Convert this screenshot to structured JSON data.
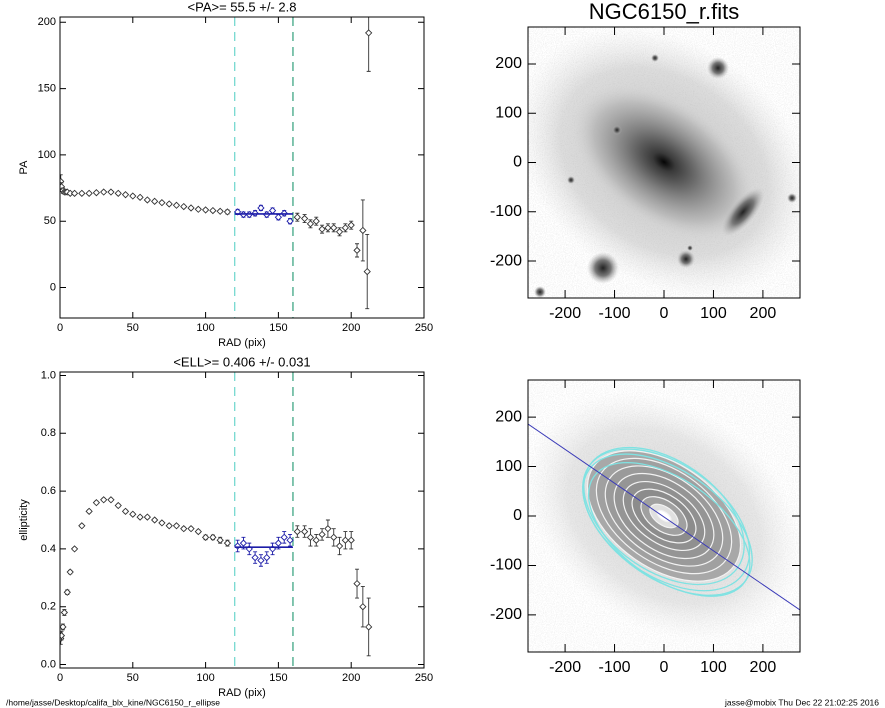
{
  "chart_data": [
    {
      "type": "errorbar",
      "title": "<PA>=  55.5 +/-   2.8",
      "xlabel": "RAD (pix)",
      "ylabel": "PA",
      "xlim": [
        0,
        250
      ],
      "ylim": [
        -23,
        204
      ],
      "xticks": [
        0,
        50,
        100,
        150,
        200,
        250
      ],
      "yticks": [
        0,
        50,
        100,
        150,
        200
      ],
      "vlines": [
        120,
        160
      ],
      "vline_colors": [
        "#6ad6cc",
        "#2f9e7a"
      ],
      "fit_value": 55.5,
      "fit_color": "#1c1ca8",
      "series": [
        {
          "color": "#333333",
          "x": [
            0.5,
            1,
            2,
            3,
            4,
            5,
            7,
            10,
            15,
            20,
            25,
            30,
            35,
            40,
            45,
            50,
            55,
            60,
            65,
            70,
            75,
            80,
            85,
            90,
            95,
            100,
            105,
            110,
            115,
            163,
            168,
            172,
            176,
            180,
            184,
            188,
            192,
            196,
            200,
            204,
            208,
            211,
            212
          ],
          "values": [
            80,
            76,
            73,
            72,
            72,
            72,
            71,
            71,
            71,
            71,
            71.5,
            72,
            72,
            71,
            70,
            69,
            68,
            66,
            65,
            64,
            63,
            62,
            61,
            60,
            59,
            58.5,
            58,
            57.5,
            57,
            53,
            52,
            48,
            50,
            44,
            45,
            45,
            42,
            45,
            47,
            28,
            43,
            12,
            192
          ],
          "errors": [
            5,
            3,
            2,
            1.5,
            1,
            1,
            1,
            1,
            1,
            1,
            1,
            1,
            1,
            1,
            1,
            1,
            1,
            1,
            1,
            1,
            1,
            1,
            1,
            1,
            1,
            1,
            1,
            1,
            1.5,
            3,
            3,
            3,
            3,
            3,
            3,
            3,
            3,
            3,
            3,
            5,
            23,
            28,
            29
          ]
        },
        {
          "color": "#1c1ca8",
          "x": [
            122,
            126,
            130,
            134,
            138,
            142,
            146,
            150,
            154,
            158
          ],
          "values": [
            57,
            55,
            55,
            56,
            60,
            55,
            58,
            53,
            56,
            50
          ],
          "errors": [
            2,
            2,
            2,
            2,
            2,
            2,
            2,
            2,
            2,
            2
          ]
        }
      ]
    },
    {
      "type": "errorbar",
      "title": "<ELL>= 0.406 +/-  0.031",
      "xlabel": "RAD (pix)",
      "ylabel": "ellipticity",
      "xlim": [
        0,
        250
      ],
      "ylim": [
        -0.012,
        1.012
      ],
      "xticks": [
        0,
        50,
        100,
        150,
        200,
        250
      ],
      "yticks": [
        {
          "value": 0,
          "label": "0.0"
        },
        0.2,
        0.4,
        0.6,
        0.8,
        {
          "value": 1,
          "label": "1.0"
        }
      ],
      "vlines": [
        120,
        160
      ],
      "vline_colors": [
        "#6ad6cc",
        "#2f9e7a"
      ],
      "fit_value": 0.406,
      "fit_color": "#1c1ca8",
      "series": [
        {
          "color": "#333333",
          "x": [
            0.5,
            1,
            2,
            3,
            5,
            7,
            10,
            15,
            20,
            25,
            30,
            35,
            40,
            45,
            50,
            55,
            60,
            65,
            70,
            75,
            80,
            85,
            90,
            95,
            100,
            105,
            110,
            115,
            163,
            168,
            172,
            176,
            180,
            184,
            188,
            192,
            196,
            200,
            204,
            208,
            212
          ],
          "values": [
            0.09,
            0.1,
            0.13,
            0.18,
            0.25,
            0.32,
            0.4,
            0.48,
            0.53,
            0.56,
            0.57,
            0.57,
            0.55,
            0.53,
            0.52,
            0.51,
            0.51,
            0.5,
            0.49,
            0.48,
            0.48,
            0.47,
            0.47,
            0.46,
            0.44,
            0.44,
            0.43,
            0.42,
            0.46,
            0.46,
            0.44,
            0.43,
            0.45,
            0.47,
            0.44,
            0.41,
            0.43,
            0.43,
            0.28,
            0.2,
            0.13
          ],
          "errors": [
            0.02,
            0.015,
            0.01,
            0.01,
            0.008,
            0.006,
            0.005,
            0.005,
            0.005,
            0.005,
            0.005,
            0.005,
            0.005,
            0.005,
            0.005,
            0.005,
            0.005,
            0.005,
            0.005,
            0.005,
            0.005,
            0.005,
            0.005,
            0.005,
            0.008,
            0.008,
            0.01,
            0.01,
            0.02,
            0.02,
            0.03,
            0.02,
            0.02,
            0.03,
            0.03,
            0.03,
            0.03,
            0.03,
            0.05,
            0.07,
            0.1
          ]
        },
        {
          "color": "#1c1ca8",
          "x": [
            122,
            126,
            130,
            134,
            138,
            142,
            146,
            150,
            154,
            158
          ],
          "values": [
            0.41,
            0.42,
            0.4,
            0.37,
            0.36,
            0.37,
            0.4,
            0.42,
            0.44,
            0.43
          ],
          "errors": [
            0.02,
            0.02,
            0.02,
            0.02,
            0.02,
            0.02,
            0.02,
            0.02,
            0.02,
            0.02
          ]
        }
      ]
    },
    {
      "type": "image",
      "title": "NGC6150_r.fits",
      "xlim": [
        -275,
        275
      ],
      "ylim": [
        -275,
        275
      ],
      "xticks": [
        -200,
        -100,
        0,
        100,
        200
      ],
      "yticks": [
        -200,
        -100,
        0,
        100,
        200
      ]
    },
    {
      "type": "image",
      "xlim": [
        -275,
        275
      ],
      "ylim": [
        -275,
        275
      ],
      "xticks": [
        -200,
        -100,
        0,
        100,
        200
      ],
      "yticks": [
        -200,
        -100,
        0,
        100,
        200
      ]
    }
  ],
  "footer": {
    "left": "/home/jasse/Desktop/califa_blx_kine/NGC6150_r_ellipse",
    "right": "jasse@mobix  Thu Dec 22 21:02:25 2016"
  }
}
